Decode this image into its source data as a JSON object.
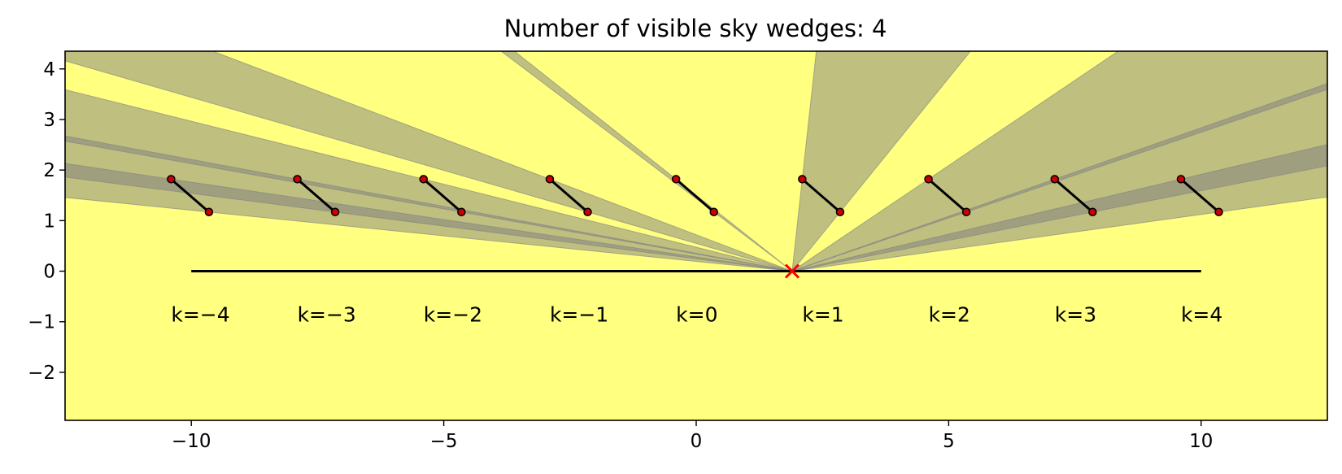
{
  "chart_data": {
    "type": "scatter",
    "title": "Number of visible sky wedges: 4",
    "xlabel": "",
    "ylabel": "",
    "xlim": [
      -12.5,
      12.5
    ],
    "ylim": [
      -2.95,
      4.35
    ],
    "xticks": [
      -10,
      -5,
      0,
      5,
      10
    ],
    "xtick_labels": [
      "−10",
      "−5",
      "0",
      "5",
      "10"
    ],
    "yticks": [
      -2,
      -1,
      0,
      1,
      2,
      3,
      4
    ],
    "ytick_labels": [
      "−2",
      "−1",
      "0",
      "1",
      "2",
      "3",
      "4"
    ],
    "grid": false,
    "ground_line": {
      "x": [
        -10,
        10
      ],
      "y": [
        0,
        0
      ]
    },
    "observer": {
      "x": 1.9,
      "y": 0,
      "marker": "x"
    },
    "segments": [
      {
        "k": -4,
        "label": "k=−4",
        "x": [
          -10.4,
          -9.65
        ],
        "y": [
          1.82,
          1.17
        ]
      },
      {
        "k": -3,
        "label": "k=−3",
        "x": [
          -7.9,
          -7.15
        ],
        "y": [
          1.82,
          1.17
        ]
      },
      {
        "k": -2,
        "label": "k=−2",
        "x": [
          -5.4,
          -4.65
        ],
        "y": [
          1.82,
          1.17
        ]
      },
      {
        "k": -1,
        "label": "k=−1",
        "x": [
          -2.9,
          -2.15
        ],
        "y": [
          1.82,
          1.17
        ]
      },
      {
        "k": 0,
        "label": "k=0",
        "x": [
          -0.4,
          0.35
        ],
        "y": [
          1.82,
          1.17
        ]
      },
      {
        "k": 1,
        "label": "k=1",
        "x": [
          2.1,
          2.85
        ],
        "y": [
          1.82,
          1.17
        ]
      },
      {
        "k": 2,
        "label": "k=2",
        "x": [
          4.6,
          5.35
        ],
        "y": [
          1.82,
          1.17
        ]
      },
      {
        "k": 3,
        "label": "k=3",
        "x": [
          7.1,
          7.85
        ],
        "y": [
          1.82,
          1.17
        ]
      },
      {
        "k": 4,
        "label": "k=4",
        "x": [
          9.6,
          10.35
        ],
        "y": [
          1.82,
          1.17
        ]
      }
    ],
    "label_y": -0.85,
    "visible_wedges": 4,
    "colors": {
      "shadow": "#808080",
      "sky": "#ffff80",
      "segment": "#000000",
      "endpoint": "#cc0000",
      "observer": "#ff0000",
      "ground": "#000000"
    }
  }
}
